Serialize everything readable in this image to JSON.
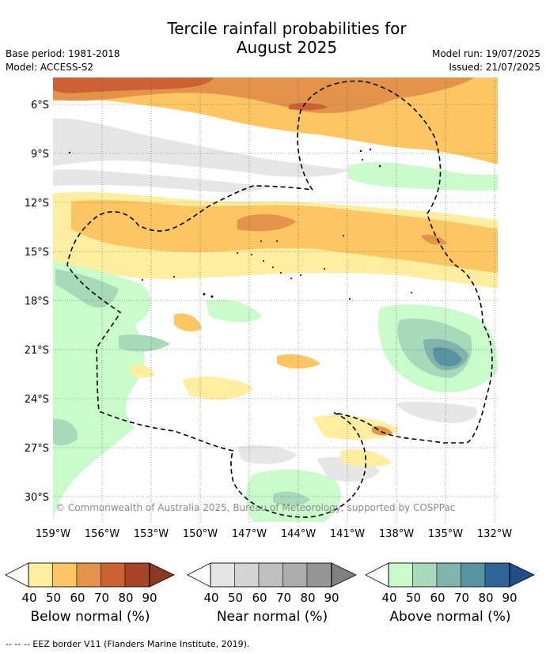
{
  "header": {
    "title_line1": "Tercile rainfall probabilities for",
    "title_line2": "August 2025",
    "base_period": "Base period: 1981-2018",
    "model": "Model: ACCESS-S2",
    "model_run": "Model run: 19/07/2025",
    "issued": "Issued: 21/07/2025"
  },
  "map": {
    "lat_ticks": [
      "6°S",
      "9°S",
      "12°S",
      "15°S",
      "18°S",
      "21°S",
      "24°S",
      "27°S",
      "30°S"
    ],
    "lon_ticks": [
      "159°W",
      "156°W",
      "153°W",
      "150°W",
      "147°W",
      "144°W",
      "141°W",
      "138°W",
      "135°W",
      "132°W"
    ],
    "copyright": "© Commonwealth of Australia 2025, Bureau of Meteorology, supported by COSPPac",
    "colors": {
      "below": [
        "#ffeea0",
        "#fdc662",
        "#e3944a",
        "#cc6133",
        "#a84426"
      ],
      "near": [
        "#e6e6e6",
        "#d4d4d4",
        "#c0c0c0",
        "#acacac",
        "#959595"
      ],
      "above": [
        "#c9fbcb",
        "#a7dab8",
        "#80b4ad",
        "#5894a0",
        "#2f6596"
      ]
    }
  },
  "legend": {
    "below": {
      "title": "Below normal (%)",
      "ticks": [
        "40",
        "50",
        "60",
        "70",
        "80",
        "90"
      ]
    },
    "near": {
      "title": "Near normal (%)",
      "ticks": [
        "40",
        "50",
        "60",
        "70",
        "80",
        "90"
      ]
    },
    "above": {
      "title": "Above normal (%)",
      "ticks": [
        "40",
        "50",
        "60",
        "70",
        "80",
        "90"
      ]
    }
  },
  "footer": "-- -- -- EEZ border V11 (Flanders Marine Institute, 2019)."
}
